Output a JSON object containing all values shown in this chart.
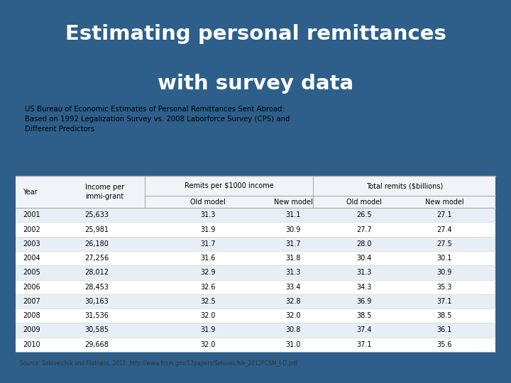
{
  "title_line1": "Estimating personal remittances",
  "title_line2": "with survey data",
  "title_color": "#FFFFFF",
  "bg_color": "#2E5F8A",
  "table_bg": "#FFFFFF",
  "subtitle": "US Bureau of Economic Estimates of Personal Remittances Sent Abroad:\nBased on 1992 Legalization Survey vs. 2008 Laborforce Survey (CPS) and\nDifferent Predictors",
  "source": "Source: Soloveichik and Flatness, 2012, http://www.fcsm.gov/12papers/Soloveichik_2012FCSM_I-D.pdf",
  "rows": [
    [
      "2001",
      "25,633",
      "31.3",
      "31.1",
      "26.5",
      "27.1"
    ],
    [
      "2002",
      "25,981",
      "31.9",
      "30.9",
      "27.7",
      "27.4"
    ],
    [
      "2003",
      "26,180",
      "31.7",
      "31.7",
      "28.0",
      "27.5"
    ],
    [
      "2004",
      "27,256",
      "31.6",
      "31.8",
      "30.4",
      "30.1"
    ],
    [
      "2005",
      "28,012",
      "32.9",
      "31.3",
      "31.3",
      "30.9"
    ],
    [
      "2006",
      "28,453",
      "32.6",
      "33.4",
      "34.3",
      "35.3"
    ],
    [
      "2007",
      "30,163",
      "32.5",
      "32.8",
      "36.9",
      "37.1"
    ],
    [
      "2008",
      "31,536",
      "32.0",
      "32.0",
      "38.5",
      "38.5"
    ],
    [
      "2009",
      "30,585",
      "31.9",
      "30.8",
      "37.4",
      "36.1"
    ],
    [
      "2010",
      "29,668",
      "32.0",
      "31.0",
      "37.1",
      "35.6"
    ]
  ],
  "row_odd_bg": "#E8EEF5",
  "row_even_bg": "#FFFFFF",
  "header_line_color": "#AAAAAA",
  "row_line_color": "#CCCCCC"
}
